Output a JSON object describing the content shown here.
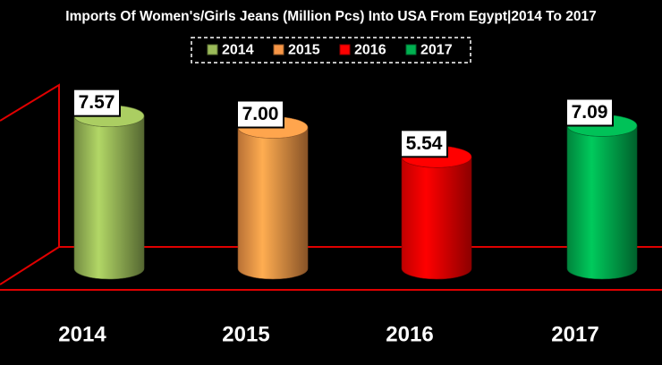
{
  "chart_data": {
    "type": "bar",
    "title": "Imports Of Women's/Girls Jeans (Million Pcs) Into USA From Egypt|2014 To 2017",
    "categories": [
      "2014",
      "2015",
      "2016",
      "2017"
    ],
    "series": [
      {
        "name": "2014",
        "color": "#9bbb59",
        "values": [
          7.57,
          null,
          null,
          null
        ],
        "value_labels": [
          "7.57",
          null,
          null,
          null
        ]
      },
      {
        "name": "2015",
        "color": "#f79646",
        "values": [
          null,
          7.0,
          null,
          null
        ],
        "value_labels": [
          null,
          "7.00",
          null,
          null
        ]
      },
      {
        "name": "2016",
        "color": "#ff0000",
        "values": [
          null,
          null,
          5.54,
          null
        ],
        "value_labels": [
          null,
          null,
          "5.54",
          null
        ]
      },
      {
        "name": "2017",
        "color": "#00b050",
        "values": [
          null,
          null,
          null,
          7.09
        ],
        "value_labels": [
          null,
          null,
          null,
          "7.09"
        ]
      }
    ],
    "ylim": [
      0,
      8
    ],
    "legend": "top"
  }
}
